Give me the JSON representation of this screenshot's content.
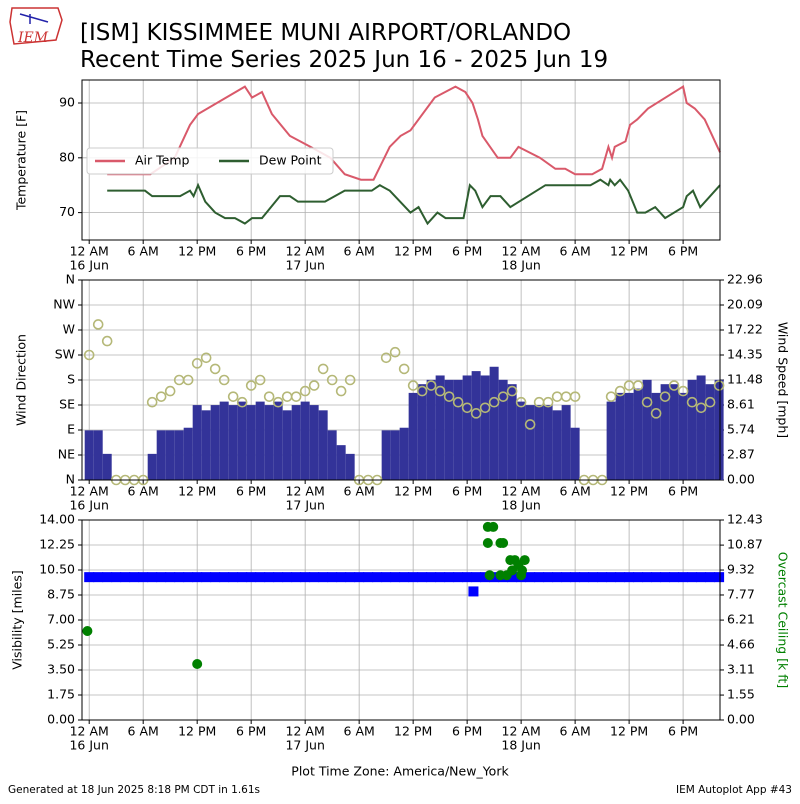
{
  "page": {
    "title": "[ISM] KISSIMMEE MUNI AIRPORT/ORLANDO",
    "subtitle": "Recent Time Series 2025 Jun 16 - 2025 Jun 19",
    "logo_text": "IEM",
    "xlabel": "Plot Time Zone: America/New_York",
    "footer_left": "Generated at 18 Jun 2025 8:18 PM CDT in 1.61s",
    "footer_right": "IEM Autoplot App #43"
  },
  "chart_data": [
    {
      "type": "line",
      "ylabel": "Temperature [F]",
      "ylim": [
        65,
        94.2
      ],
      "yticks": [
        70,
        80,
        90
      ],
      "xlim": [
        -0.8,
        70.1
      ],
      "grid": true,
      "legend": "center left",
      "xticks": [
        {
          "value": 0,
          "label": "12 AM"
        },
        {
          "value": 6,
          "label": "6 AM"
        },
        {
          "value": 12,
          "label": "12 PM"
        },
        {
          "value": 18,
          "label": "6 PM"
        },
        {
          "value": 24,
          "label": "12 AM"
        },
        {
          "value": 30,
          "label": "6 AM"
        },
        {
          "value": 36,
          "label": "12 PM"
        },
        {
          "value": 42,
          "label": "6 PM"
        },
        {
          "value": 48,
          "label": "12 AM"
        },
        {
          "value": 54,
          "label": "6 AM"
        },
        {
          "value": 60,
          "label": "12 PM"
        },
        {
          "value": 66,
          "label": "6 PM"
        }
      ],
      "xdates": [
        {
          "value": 0,
          "label": "16 Jun"
        },
        {
          "value": 24,
          "label": "17 Jun"
        },
        {
          "value": 48,
          "label": "18 Jun"
        }
      ],
      "series": [
        {
          "name": "Air Temp",
          "color": "#d9596a",
          "x": [
            2,
            6.8,
            9.5,
            11.2,
            12.1,
            17.3,
            18.1,
            19.2,
            20.3,
            22.3,
            24.6,
            26.8,
            28.4,
            30.2,
            31.6,
            33.4,
            34.6,
            35.7,
            38.4,
            40.7,
            41.8,
            42.6,
            43.2,
            43.7,
            45.4,
            46.8,
            47.7,
            50.1,
            51.8,
            52.9,
            54,
            55.9,
            57,
            57.7,
            58.1,
            58.4,
            59.6,
            60.1,
            60.9,
            62.1,
            66,
            66.4,
            67.3,
            68.4,
            70.1
          ],
          "values": [
            77,
            77,
            80,
            86,
            88,
            93,
            91,
            92,
            88,
            84,
            82,
            80,
            77,
            76,
            76,
            82,
            84,
            85,
            91,
            93,
            92,
            90,
            87,
            84,
            80,
            80,
            82,
            80,
            78,
            78,
            77,
            77,
            78,
            82,
            80,
            82,
            83,
            86,
            87,
            89,
            93,
            90,
            89,
            87,
            81
          ]
        },
        {
          "name": "Dew Point",
          "color": "#2e5e30",
          "x": [
            2,
            6.2,
            7,
            10.1,
            11.2,
            11.6,
            12.1,
            12.9,
            14,
            15.1,
            16.2,
            17.3,
            18.1,
            19.2,
            21.2,
            22.3,
            23.2,
            26.2,
            28.4,
            31.4,
            32.3,
            33.4,
            35.7,
            36.6,
            37.6,
            38.7,
            39.6,
            41.6,
            42.3,
            42.9,
            43.7,
            44.6,
            45.7,
            46.8,
            50.7,
            55.7,
            56.8,
            57.7,
            57.9,
            58.4,
            59,
            59.9,
            60.9,
            61.8,
            62.9,
            64,
            66,
            66.4,
            67.1,
            67.9,
            70.1
          ],
          "values": [
            74,
            74,
            73,
            73,
            74,
            73,
            75,
            72,
            70,
            69,
            69,
            68,
            69,
            69,
            73,
            73,
            72,
            72,
            74,
            74,
            75,
            74,
            70,
            71,
            68,
            70,
            69,
            69,
            75,
            74,
            71,
            73,
            73,
            71,
            75,
            75,
            76,
            75,
            76,
            75,
            76,
            74,
            70,
            70,
            71,
            69,
            71,
            73,
            74,
            71,
            75
          ]
        }
      ]
    },
    {
      "type": "combo",
      "ylabel": "Wind Direction",
      "y2label": "Wind Speed [mph]",
      "ylim": [
        0,
        360
      ],
      "y2lim": [
        0,
        22.96
      ],
      "xlim": [
        -0.8,
        70.1
      ],
      "grid": true,
      "yticks": [
        {
          "value": 0,
          "label": "N"
        },
        {
          "value": 45,
          "label": "NE"
        },
        {
          "value": 90,
          "label": "E"
        },
        {
          "value": 135,
          "label": "SE"
        },
        {
          "value": 180,
          "label": "S"
        },
        {
          "value": 225,
          "label": "SW"
        },
        {
          "value": 270,
          "label": "W"
        },
        {
          "value": 315,
          "label": "NW"
        },
        {
          "value": 360,
          "label": "N"
        }
      ],
      "y2ticks": [
        {
          "value": 0,
          "label": "0.00"
        },
        2.87,
        5.74,
        8.61,
        11.48,
        14.35,
        17.22,
        20.09,
        22.96
      ],
      "xticks": [
        {
          "value": 0,
          "label": "12 AM"
        },
        {
          "value": 6,
          "label": "6 AM"
        },
        {
          "value": 12,
          "label": "12 PM"
        },
        {
          "value": 18,
          "label": "6 PM"
        },
        {
          "value": 24,
          "label": "12 AM"
        },
        {
          "value": 30,
          "label": "6 AM"
        },
        {
          "value": 36,
          "label": "12 PM"
        },
        {
          "value": 42,
          "label": "6 PM"
        },
        {
          "value": 48,
          "label": "12 AM"
        },
        {
          "value": 54,
          "label": "6 AM"
        },
        {
          "value": 60,
          "label": "12 PM"
        },
        {
          "value": 66,
          "label": "6 PM"
        }
      ],
      "xdates": [
        {
          "value": 0,
          "label": "16 Jun"
        },
        {
          "value": 24,
          "label": "17 Jun"
        },
        {
          "value": 48,
          "label": "18 Jun"
        }
      ],
      "x": [
        0,
        1,
        2,
        3,
        4,
        5,
        6,
        7,
        8,
        9,
        10,
        11,
        12,
        13,
        14,
        15,
        16,
        17,
        18,
        19,
        20,
        21,
        22,
        23,
        24,
        25,
        26,
        27,
        28,
        29,
        30,
        31,
        32,
        33,
        34,
        35,
        36,
        37,
        38,
        39,
        40,
        41,
        42,
        43,
        44,
        45,
        46,
        47,
        48,
        49,
        50,
        51,
        52,
        53,
        54,
        55,
        56,
        57,
        58,
        59,
        60,
        61,
        62,
        63,
        64,
        65,
        66,
        67,
        68,
        69,
        70
      ],
      "series": [
        {
          "type": "bar",
          "axis": "y2",
          "color": "#333399",
          "values": [
            5.7,
            5.7,
            3,
            0,
            0,
            0,
            0,
            3,
            5.7,
            5.7,
            5.7,
            6,
            8.6,
            8,
            8.6,
            9,
            8.6,
            9,
            8.6,
            9,
            8.6,
            9,
            8,
            8.6,
            9,
            8.6,
            8,
            5.7,
            4,
            3,
            0,
            0,
            0,
            5.7,
            5.7,
            6,
            10,
            11,
            11.5,
            12,
            11.5,
            11.5,
            12,
            12.5,
            12,
            13,
            11.5,
            11,
            9,
            8.6,
            8.6,
            8.6,
            8,
            8.6,
            6,
            0,
            0,
            0,
            9,
            10,
            10,
            10.5,
            11.5,
            10,
            11,
            11,
            10,
            11.5,
            12,
            11,
            11.5
          ]
        },
        {
          "type": "circle",
          "axis": "y",
          "color": "#b5b878",
          "values": [
            225,
            280,
            250,
            0,
            0,
            0,
            0,
            140,
            150,
            160,
            180,
            180,
            210,
            220,
            200,
            180,
            150,
            140,
            170,
            180,
            150,
            140,
            150,
            150,
            160,
            170,
            200,
            180,
            160,
            180,
            0,
            0,
            0,
            220,
            230,
            200,
            170,
            160,
            170,
            160,
            150,
            140,
            130,
            120,
            130,
            140,
            150,
            160,
            140,
            100,
            140,
            140,
            150,
            150,
            150,
            0,
            0,
            0,
            150,
            160,
            170,
            170,
            140,
            120,
            150,
            170,
            160,
            140,
            130,
            140,
            170
          ]
        }
      ]
    },
    {
      "type": "scatter",
      "ylabel": "Visibility [miles]",
      "y2label": "Overcast Ceiling [k ft]",
      "y2label_color": "green",
      "ylim": [
        0,
        14
      ],
      "y2lim": [
        0,
        12.43
      ],
      "xlim": [
        -0.8,
        70.1
      ],
      "grid": true,
      "yticks": [
        {
          "value": 0,
          "label": "0.00"
        },
        1.75,
        {
          "value": 3.5,
          "label": "3.50"
        },
        5.25,
        {
          "value": 7,
          "label": "7.00"
        },
        8.75,
        {
          "value": 10.5,
          "label": "10.50"
        },
        12.25,
        {
          "value": 14,
          "label": "14.00"
        }
      ],
      "y2ticks": [
        {
          "value": 0,
          "label": "0.00"
        },
        1.55,
        3.11,
        4.66,
        6.21,
        7.77,
        9.32,
        10.87,
        12.43
      ],
      "xticks": [
        {
          "value": 0,
          "label": "12 AM"
        },
        {
          "value": 6,
          "label": "6 AM"
        },
        {
          "value": 12,
          "label": "12 PM"
        },
        {
          "value": 18,
          "label": "6 PM"
        },
        {
          "value": 24,
          "label": "12 AM"
        },
        {
          "value": 30,
          "label": "6 AM"
        },
        {
          "value": 36,
          "label": "12 PM"
        },
        {
          "value": 42,
          "label": "6 PM"
        },
        {
          "value": 48,
          "label": "12 AM"
        },
        {
          "value": 54,
          "label": "6 AM"
        },
        {
          "value": 60,
          "label": "12 PM"
        },
        {
          "value": 66,
          "label": "6 PM"
        }
      ],
      "xdates": [
        {
          "value": 0,
          "label": "16 Jun"
        },
        {
          "value": 24,
          "label": "17 Jun"
        },
        {
          "value": 48,
          "label": "18 Jun"
        }
      ],
      "series": [
        {
          "marker": "square",
          "axis": "y",
          "color": "#0000ff",
          "x": [
            0,
            1,
            2,
            3,
            4,
            5,
            6,
            7,
            8,
            9,
            10,
            11,
            12,
            13,
            14,
            15,
            16,
            17,
            18,
            19,
            20,
            21,
            22,
            23,
            24,
            25,
            26,
            27,
            28,
            29,
            30,
            31,
            32,
            33,
            34,
            35,
            36,
            37,
            38,
            39,
            40,
            41,
            42,
            43,
            44,
            45,
            46,
            47,
            48,
            49,
            50,
            51,
            52,
            53,
            54,
            55,
            56,
            57,
            58,
            59,
            60,
            61,
            62,
            63,
            64,
            65,
            66,
            67,
            68,
            69,
            70,
            42.7
          ],
          "values": [
            10,
            10,
            10,
            10,
            10,
            10,
            10,
            10,
            10,
            10,
            10,
            10,
            10,
            10,
            10,
            10,
            10,
            10,
            10,
            10,
            10,
            10,
            10,
            10,
            10,
            10,
            10,
            10,
            10,
            10,
            10,
            10,
            10,
            10,
            10,
            10,
            10,
            10,
            10,
            10,
            10,
            10,
            10,
            10,
            10,
            10,
            10,
            10,
            10,
            10,
            10,
            10,
            10,
            10,
            10,
            10,
            10,
            10,
            10,
            10,
            10,
            10,
            10,
            10,
            10,
            10,
            10,
            10,
            10,
            10,
            10,
            9
          ]
        },
        {
          "marker": "circle",
          "axis": "y2",
          "color": "#008000",
          "x": [
            -0.2,
            12,
            44.3,
            44.9,
            44.3,
            45.7,
            46,
            44.5,
            45.7,
            46.4,
            46.8,
            47,
            47.3,
            47.7,
            48.1,
            48.4,
            48
          ],
          "values": [
            5.53,
            3.48,
            12,
            12,
            11,
            11,
            11,
            9,
            9,
            9,
            9.94,
            9.3,
            9.94,
            9.63,
            9.3,
            9.94,
            9.0
          ]
        }
      ]
    }
  ]
}
